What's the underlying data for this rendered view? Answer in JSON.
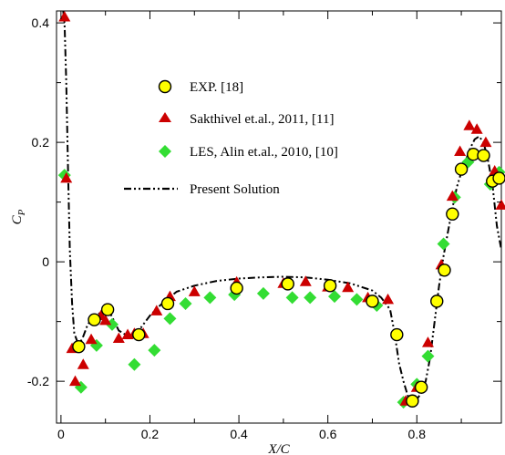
{
  "chart_data": {
    "type": "scatter",
    "xlabel": "X/C",
    "ylabel": "C",
    "ylabel_sub": "P",
    "xlim": [
      -0.01,
      0.99
    ],
    "ylim": [
      -0.27,
      0.42
    ],
    "x_ticks": [
      0,
      0.2,
      0.4,
      0.6,
      0.8
    ],
    "x_tick_labels": [
      "0",
      "0.2",
      "0.4",
      "0.6",
      "0.8"
    ],
    "y_ticks": [
      -0.2,
      0,
      0.2,
      0.4
    ],
    "y_tick_labels": [
      "-0.2",
      "0",
      "0.2",
      "0.4"
    ],
    "grid": false,
    "legend_position": "upper-left inside",
    "series": [
      {
        "name": "EXP. [18]",
        "marker": "circle",
        "color": "#ffff00",
        "edge": "#000000",
        "x": [
          0.04,
          0.075,
          0.105,
          0.175,
          0.24,
          0.395,
          0.51,
          0.605,
          0.7,
          0.755,
          0.79,
          0.81,
          0.845,
          0.862,
          0.88,
          0.9,
          0.927,
          0.95,
          0.97,
          0.985
        ],
        "y": [
          -0.142,
          -0.097,
          -0.08,
          -0.122,
          -0.07,
          -0.044,
          -0.037,
          -0.04,
          -0.066,
          -0.122,
          -0.233,
          -0.21,
          -0.066,
          -0.014,
          0.08,
          0.155,
          0.18,
          0.178,
          0.135,
          0.14
        ]
      },
      {
        "name": "Sakthivel et.al., 2011, [11]",
        "marker": "triangle",
        "color": "#cc0000",
        "edge": "#cc0000",
        "x": [
          0.008,
          0.012,
          0.025,
          0.032,
          0.05,
          0.068,
          0.09,
          0.1,
          0.13,
          0.15,
          0.165,
          0.185,
          0.215,
          0.245,
          0.3,
          0.395,
          0.5,
          0.55,
          0.6,
          0.645,
          0.69,
          0.735,
          0.775,
          0.8,
          0.825,
          0.855,
          0.88,
          0.897,
          0.918,
          0.935,
          0.955,
          0.975,
          0.99
        ],
        "y": [
          0.41,
          0.14,
          -0.145,
          -0.2,
          -0.172,
          -0.13,
          -0.09,
          -0.098,
          -0.128,
          -0.122,
          -0.12,
          -0.12,
          -0.082,
          -0.058,
          -0.05,
          -0.034,
          -0.036,
          -0.033,
          -0.042,
          -0.043,
          -0.06,
          -0.063,
          -0.233,
          -0.21,
          -0.135,
          -0.005,
          0.11,
          0.185,
          0.228,
          0.222,
          0.2,
          0.152,
          0.095
        ]
      },
      {
        "name": "LES, Alin et.al., 2010, [10]",
        "marker": "diamond",
        "color": "#33dd33",
        "edge": "#33dd33",
        "x": [
          0.008,
          0.045,
          0.08,
          0.115,
          0.165,
          0.21,
          0.245,
          0.28,
          0.335,
          0.39,
          0.455,
          0.52,
          0.56,
          0.615,
          0.665,
          0.71,
          0.77,
          0.8,
          0.825,
          0.86,
          0.885,
          0.915,
          0.945,
          0.965,
          0.985
        ],
        "y": [
          0.145,
          -0.21,
          -0.14,
          -0.105,
          -0.172,
          -0.148,
          -0.095,
          -0.07,
          -0.06,
          -0.055,
          -0.053,
          -0.06,
          -0.06,
          -0.058,
          -0.063,
          -0.073,
          -0.235,
          -0.205,
          -0.158,
          0.03,
          0.108,
          0.167,
          0.178,
          0.13,
          0.15
        ]
      },
      {
        "name": "Present Solution",
        "marker": "line",
        "style": "dashdotdot",
        "color": "#000000",
        "x": [
          0.005,
          0.008,
          0.012,
          0.016,
          0.02,
          0.025,
          0.03,
          0.04,
          0.05,
          0.06,
          0.075,
          0.09,
          0.1,
          0.11,
          0.12,
          0.13,
          0.145,
          0.16,
          0.18,
          0.2,
          0.22,
          0.24,
          0.26,
          0.3,
          0.35,
          0.4,
          0.45,
          0.5,
          0.55,
          0.6,
          0.65,
          0.7,
          0.72,
          0.74,
          0.75,
          0.76,
          0.77,
          0.78,
          0.79,
          0.8,
          0.81,
          0.82,
          0.83,
          0.84,
          0.85,
          0.86,
          0.87,
          0.88,
          0.89,
          0.9,
          0.91,
          0.92,
          0.93,
          0.94,
          0.95,
          0.96,
          0.97,
          0.98,
          0.99
        ],
        "y": [
          0.42,
          0.4,
          0.3,
          0.15,
          0.02,
          -0.07,
          -0.12,
          -0.14,
          -0.125,
          -0.105,
          -0.09,
          -0.085,
          -0.082,
          -0.085,
          -0.1,
          -0.115,
          -0.122,
          -0.12,
          -0.11,
          -0.09,
          -0.075,
          -0.062,
          -0.05,
          -0.04,
          -0.032,
          -0.028,
          -0.026,
          -0.025,
          -0.026,
          -0.03,
          -0.036,
          -0.048,
          -0.06,
          -0.08,
          -0.12,
          -0.17,
          -0.2,
          -0.225,
          -0.232,
          -0.23,
          -0.22,
          -0.2,
          -0.16,
          -0.1,
          -0.04,
          0.01,
          0.05,
          0.09,
          0.125,
          0.15,
          0.17,
          0.19,
          0.205,
          0.21,
          0.2,
          0.17,
          0.13,
          0.06,
          0.02
        ]
      }
    ]
  }
}
